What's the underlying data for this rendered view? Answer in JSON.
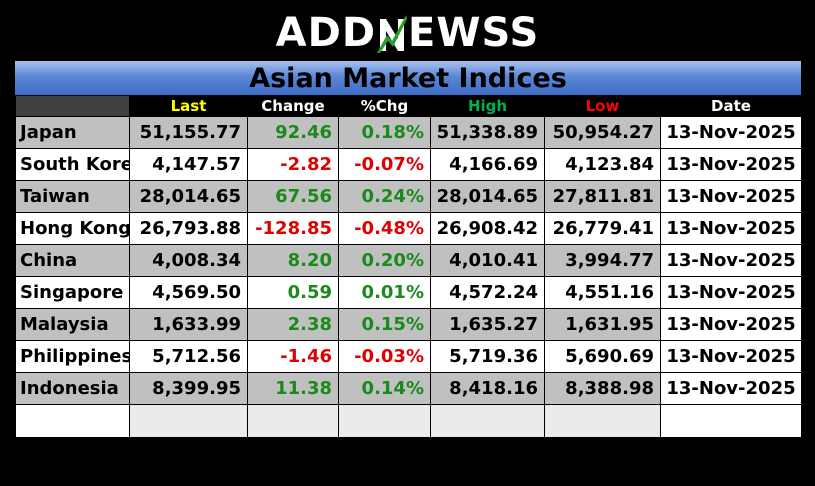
{
  "logo": {
    "part1": "ADD",
    "part2": "EWSS"
  },
  "title": "Asian Market Indices",
  "headers": {
    "last": "Last",
    "change": "Change",
    "pct": "%Chg",
    "high": "High",
    "low": "Low",
    "date": "Date"
  },
  "colors": {
    "last_header": "#ffff00",
    "change_header": "#ffffff",
    "pct_header": "#ffffff",
    "high_header": "#00b050",
    "low_header": "#ff0000",
    "date_header": "#ffffff",
    "positive": "#1a8a1a",
    "negative": "#e00000",
    "logo_accent": "#2e9b2e"
  },
  "rows": [
    {
      "country": "Japan",
      "last": "51,155.77",
      "change": "92.46",
      "pct": "0.18%",
      "high": "51,338.89",
      "low": "50,954.27",
      "date": "13-Nov-2025",
      "dir": "pos"
    },
    {
      "country": "South Korea",
      "last": "4,147.57",
      "change": "-2.82",
      "pct": "-0.07%",
      "high": "4,166.69",
      "low": "4,123.84",
      "date": "13-Nov-2025",
      "dir": "neg"
    },
    {
      "country": "Taiwan",
      "last": "28,014.65",
      "change": "67.56",
      "pct": "0.24%",
      "high": "28,014.65",
      "low": "27,811.81",
      "date": "13-Nov-2025",
      "dir": "pos"
    },
    {
      "country": "Hong Kong",
      "last": "26,793.88",
      "change": "-128.85",
      "pct": "-0.48%",
      "high": "26,908.42",
      "low": "26,779.41",
      "date": "13-Nov-2025",
      "dir": "neg"
    },
    {
      "country": "China",
      "last": "4,008.34",
      "change": "8.20",
      "pct": "0.20%",
      "high": "4,010.41",
      "low": "3,994.77",
      "date": "13-Nov-2025",
      "dir": "pos"
    },
    {
      "country": "Singapore",
      "last": "4,569.50",
      "change": "0.59",
      "pct": "0.01%",
      "high": "4,572.24",
      "low": "4,551.16",
      "date": "13-Nov-2025",
      "dir": "pos"
    },
    {
      "country": "Malaysia",
      "last": "1,633.99",
      "change": "2.38",
      "pct": "0.15%",
      "high": "1,635.27",
      "low": "1,631.95",
      "date": "13-Nov-2025",
      "dir": "pos"
    },
    {
      "country": "Philippines",
      "last": "5,712.56",
      "change": "-1.46",
      "pct": "-0.03%",
      "high": "5,719.36",
      "low": "5,690.69",
      "date": "13-Nov-2025",
      "dir": "neg"
    },
    {
      "country": "Indonesia",
      "last": "8,399.95",
      "change": "11.38",
      "pct": "0.14%",
      "high": "8,418.16",
      "low": "8,388.98",
      "date": "13-Nov-2025",
      "dir": "pos"
    }
  ]
}
